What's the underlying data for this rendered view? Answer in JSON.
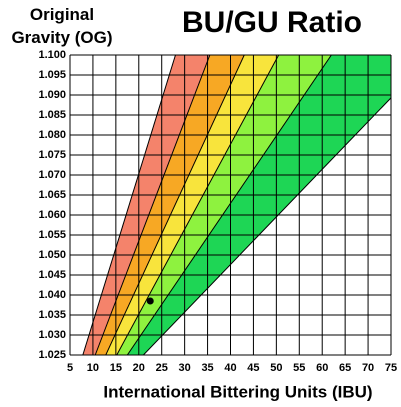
{
  "chart_data": {
    "type": "bands",
    "title": "BU/GU Ratio",
    "ylabel": "Original Gravity (OG)",
    "xlabel": "International Bittering Units (IBU)",
    "xlim": [
      5,
      75
    ],
    "xticks": [
      5,
      10,
      15,
      20,
      25,
      30,
      35,
      40,
      45,
      50,
      55,
      60,
      65,
      70,
      75
    ],
    "ylim": [
      1.025,
      1.1
    ],
    "yticks": [
      1.025,
      {
        "value": 1.03,
        "label": "1.030"
      },
      1.035,
      {
        "value": 1.04,
        "label": "1.040"
      },
      1.045,
      {
        "value": 1.05,
        "label": "1.050"
      },
      1.055,
      {
        "value": 1.06,
        "label": "1.060"
      },
      1.065,
      {
        "value": 1.07,
        "label": "1.070"
      },
      1.075,
      {
        "value": 1.08,
        "label": "1.080"
      },
      1.085,
      {
        "value": 1.09,
        "label": "1.090"
      },
      1.095,
      {
        "value": 1.1,
        "label": "1.100"
      }
    ],
    "grid": true,
    "boundaries": [
      [
        7.8,
        28
      ],
      [
        10.5,
        35.5
      ],
      [
        12.8,
        43
      ],
      [
        15.2,
        50.5
      ],
      [
        17.5,
        62
      ],
      [
        21,
        84
      ]
    ],
    "band_colors": [
      "#f4836b",
      "#f7a824",
      "#f8e43c",
      "#8ef23f",
      "#1ed655"
    ],
    "point": {
      "x": 22.5,
      "y": 1.0385
    }
  }
}
